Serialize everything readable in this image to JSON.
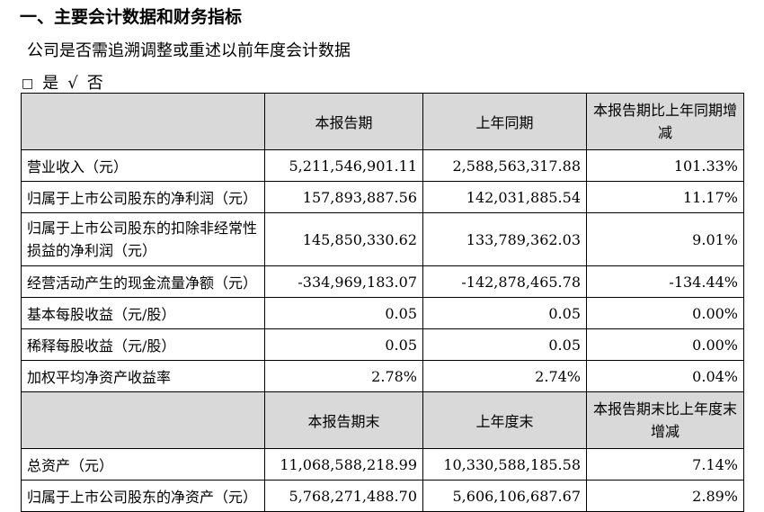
{
  "heading": "一、主要会计数据和财务指标",
  "question": "公司是否需追溯调整或重述以前年度会计数据",
  "options": {
    "checkbox_symbol": "□",
    "yes_label": "是",
    "check_symbol": "√",
    "no_label": "否"
  },
  "table": {
    "header1": {
      "blank": "",
      "c1": "本报告期",
      "c2": "上年同期",
      "c3": "本报告期比上年同期增减"
    },
    "rows1": [
      {
        "label": "营业收入（元）",
        "c1": "5,211,546,901.11",
        "c2": "2,588,563,317.88",
        "c3": "101.33%"
      },
      {
        "label": "归属于上市公司股东的净利润（元）",
        "c1": "157,893,887.56",
        "c2": "142,031,885.54",
        "c3": "11.17%"
      },
      {
        "label": "归属于上市公司股东的扣除非经常性损益的净利润（元）",
        "c1": "145,850,330.62",
        "c2": "133,789,362.03",
        "c3": "9.01%"
      },
      {
        "label": "经营活动产生的现金流量净额（元）",
        "c1": "-334,969,183.07",
        "c2": "-142,878,465.78",
        "c3": "-134.44%"
      },
      {
        "label": "基本每股收益（元/股）",
        "c1": "0.05",
        "c2": "0.05",
        "c3": "0.00%"
      },
      {
        "label": "稀释每股收益（元/股）",
        "c1": "0.05",
        "c2": "0.05",
        "c3": "0.00%"
      },
      {
        "label": "加权平均净资产收益率",
        "c1": "2.78%",
        "c2": "2.74%",
        "c3": "0.04%"
      }
    ],
    "header2": {
      "blank": "",
      "c1": "本报告期末",
      "c2": "上年度末",
      "c3": "本报告期末比上年度末增减"
    },
    "rows2": [
      {
        "label": "总资产（元）",
        "c1": "11,068,588,218.99",
        "c2": "10,330,588,185.58",
        "c3": "7.14%"
      },
      {
        "label": "归属于上市公司股东的净资产（元）",
        "c1": "5,768,271,488.70",
        "c2": "5,606,106,687.67",
        "c3": "2.89%"
      }
    ]
  }
}
